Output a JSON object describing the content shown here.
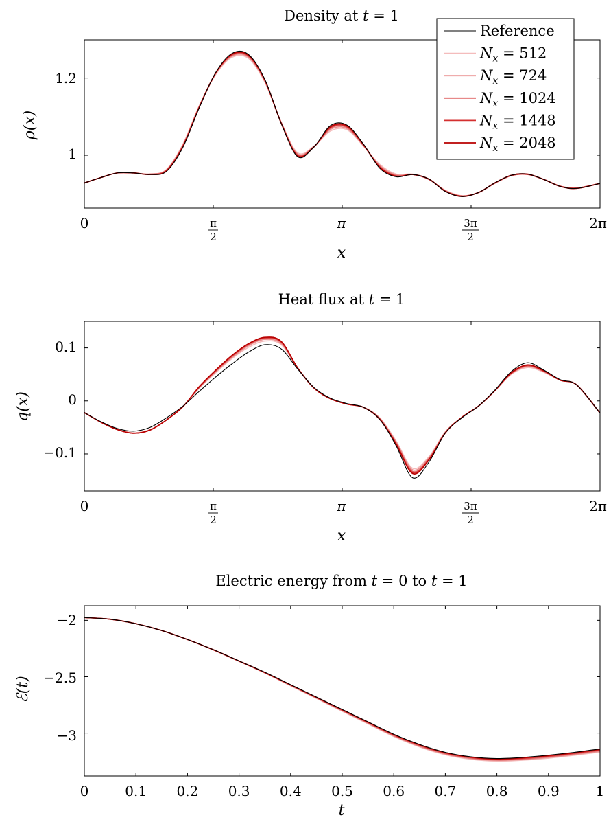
{
  "legend": {
    "placement": "top-right of first plot",
    "entries": [
      {
        "label": "Reference",
        "color": "#000000"
      },
      {
        "label": "N_x = 512",
        "color": "#f4bcbc"
      },
      {
        "label": "N_x = 724",
        "color": "#ea9090"
      },
      {
        "label": "N_x = 1024",
        "color": "#df6262"
      },
      {
        "label": "N_x = 1448",
        "color": "#d43030"
      },
      {
        "label": "N_x = 2048",
        "color": "#b80000"
      }
    ]
  },
  "chart_data": [
    {
      "type": "line",
      "title": "Density at t = 1",
      "xlabel": "x",
      "ylabel": "ρ(x)",
      "xlim": [
        0,
        6.2832
      ],
      "ylim": [
        0.863,
        1.299
      ],
      "xticks": [
        {
          "v": 0,
          "label": "0"
        },
        {
          "v": 1.5708,
          "label": "π/2"
        },
        {
          "v": 3.1416,
          "label": "π"
        },
        {
          "v": 4.7124,
          "label": "3π/2"
        },
        {
          "v": 6.2832,
          "label": "2π"
        }
      ],
      "yticks": [
        {
          "v": 1.0,
          "label": "1"
        },
        {
          "v": 1.2,
          "label": "1.2"
        }
      ],
      "grid": false,
      "x": [
        0,
        0.2,
        0.4,
        0.6,
        0.8,
        1.0,
        1.2,
        1.4,
        1.6,
        1.8,
        2.0,
        2.2,
        2.4,
        2.6,
        2.8,
        3.0,
        3.2,
        3.4,
        3.6,
        3.8,
        4.0,
        4.2,
        4.4,
        4.6,
        4.8,
        5.0,
        5.2,
        5.4,
        5.6,
        5.8,
        6.0,
        6.2832
      ],
      "series": [
        {
          "name": "Reference",
          "values": [
            0.928,
            0.942,
            0.954,
            0.954,
            0.95,
            0.958,
            1.02,
            1.123,
            1.214,
            1.264,
            1.261,
            1.196,
            1.082,
            0.996,
            1.022,
            1.077,
            1.078,
            1.029,
            0.966,
            0.944,
            0.95,
            0.938,
            0.906,
            0.893,
            0.903,
            0.928,
            0.948,
            0.951,
            0.937,
            0.919,
            0.914,
            0.927
          ]
        },
        {
          "name": "N_x = 512",
          "values": [
            0.928,
            0.942,
            0.954,
            0.954,
            0.951,
            0.963,
            1.028,
            1.128,
            1.209,
            1.254,
            1.251,
            1.189,
            1.085,
            1.006,
            1.024,
            1.063,
            1.066,
            1.024,
            0.976,
            0.951,
            0.951,
            0.937,
            0.909,
            0.895,
            0.903,
            0.927,
            0.947,
            0.95,
            0.937,
            0.92,
            0.915,
            0.927
          ]
        },
        {
          "name": "N_x = 724",
          "values": [
            0.928,
            0.942,
            0.954,
            0.954,
            0.951,
            0.962,
            1.026,
            1.127,
            1.211,
            1.257,
            1.254,
            1.191,
            1.084,
            1.003,
            1.023,
            1.067,
            1.069,
            1.025,
            0.973,
            0.949,
            0.95,
            0.937,
            0.908,
            0.894,
            0.903,
            0.927,
            0.947,
            0.95,
            0.937,
            0.92,
            0.915,
            0.927
          ]
        },
        {
          "name": "N_x = 1024",
          "values": [
            0.928,
            0.942,
            0.954,
            0.954,
            0.951,
            0.961,
            1.024,
            1.126,
            1.212,
            1.259,
            1.256,
            1.193,
            1.083,
            1.001,
            1.023,
            1.07,
            1.072,
            1.026,
            0.971,
            0.947,
            0.95,
            0.937,
            0.907,
            0.894,
            0.903,
            0.927,
            0.947,
            0.95,
            0.937,
            0.92,
            0.915,
            0.927
          ]
        },
        {
          "name": "N_x = 1448",
          "values": [
            0.928,
            0.942,
            0.954,
            0.954,
            0.95,
            0.96,
            1.023,
            1.125,
            1.213,
            1.261,
            1.258,
            1.194,
            1.083,
            0.999,
            1.022,
            1.072,
            1.074,
            1.027,
            0.969,
            0.946,
            0.95,
            0.938,
            0.907,
            0.894,
            0.903,
            0.928,
            0.948,
            0.951,
            0.937,
            0.919,
            0.914,
            0.927
          ]
        },
        {
          "name": "N_x = 2048",
          "values": [
            0.928,
            0.942,
            0.954,
            0.954,
            0.95,
            0.959,
            1.022,
            1.124,
            1.213,
            1.262,
            1.259,
            1.195,
            1.082,
            0.998,
            1.022,
            1.074,
            1.076,
            1.028,
            0.968,
            0.945,
            0.95,
            0.938,
            0.906,
            0.893,
            0.903,
            0.928,
            0.948,
            0.951,
            0.937,
            0.919,
            0.914,
            0.927
          ]
        }
      ]
    },
    {
      "type": "line",
      "title": "Heat flux at t = 1",
      "xlabel": "x",
      "ylabel": "q(x)",
      "xlim": [
        0,
        6.2832
      ],
      "ylim": [
        -0.17,
        0.15
      ],
      "xticks": [
        {
          "v": 0,
          "label": "0"
        },
        {
          "v": 1.5708,
          "label": "π/2"
        },
        {
          "v": 3.1416,
          "label": "π"
        },
        {
          "v": 4.7124,
          "label": "3π/2"
        },
        {
          "v": 6.2832,
          "label": "2π"
        }
      ],
      "yticks": [
        {
          "v": -0.1,
          "label": "−0.1"
        },
        {
          "v": 0,
          "label": "0"
        },
        {
          "v": 0.1,
          "label": "0.1"
        }
      ],
      "grid": false,
      "x": [
        0,
        0.2,
        0.4,
        0.6,
        0.8,
        1.0,
        1.2,
        1.4,
        1.6,
        1.8,
        2.0,
        2.2,
        2.4,
        2.6,
        2.8,
        3.0,
        3.2,
        3.4,
        3.6,
        3.8,
        4.0,
        4.2,
        4.4,
        4.6,
        4.8,
        5.0,
        5.2,
        5.4,
        5.6,
        5.8,
        6.0,
        6.2832
      ],
      "series": [
        {
          "name": "Reference",
          "values": [
            -0.022,
            -0.039,
            -0.052,
            -0.057,
            -0.05,
            -0.032,
            -0.01,
            0.018,
            0.045,
            0.07,
            0.092,
            0.106,
            0.098,
            0.06,
            0.025,
            0.005,
            -0.005,
            -0.012,
            -0.035,
            -0.085,
            -0.145,
            -0.115,
            -0.06,
            -0.032,
            -0.01,
            0.02,
            0.055,
            0.072,
            0.058,
            0.04,
            0.03,
            -0.023
          ]
        },
        {
          "name": "N_x = 512",
          "values": [
            -0.022,
            -0.04,
            -0.053,
            -0.06,
            -0.054,
            -0.036,
            -0.011,
            0.024,
            0.053,
            0.08,
            0.101,
            0.113,
            0.106,
            0.061,
            0.024,
            0.004,
            -0.006,
            -0.012,
            -0.032,
            -0.076,
            -0.127,
            -0.105,
            -0.058,
            -0.031,
            -0.01,
            0.019,
            0.05,
            0.063,
            0.054,
            0.039,
            0.03,
            -0.023
          ]
        },
        {
          "name": "N_x = 724",
          "values": [
            -0.022,
            -0.04,
            -0.054,
            -0.061,
            -0.055,
            -0.036,
            -0.011,
            0.025,
            0.055,
            0.082,
            0.104,
            0.116,
            0.108,
            0.062,
            0.024,
            0.004,
            -0.006,
            -0.012,
            -0.033,
            -0.078,
            -0.13,
            -0.107,
            -0.059,
            -0.031,
            -0.01,
            0.019,
            0.051,
            0.065,
            0.055,
            0.039,
            0.03,
            -0.023
          ]
        },
        {
          "name": "N_x = 1024",
          "values": [
            -0.022,
            -0.04,
            -0.054,
            -0.061,
            -0.055,
            -0.036,
            -0.011,
            0.026,
            0.056,
            0.084,
            0.106,
            0.118,
            0.11,
            0.062,
            0.024,
            0.004,
            -0.006,
            -0.012,
            -0.034,
            -0.08,
            -0.133,
            -0.109,
            -0.059,
            -0.031,
            -0.01,
            0.019,
            0.052,
            0.066,
            0.056,
            0.039,
            0.03,
            -0.023
          ]
        },
        {
          "name": "N_x = 1448",
          "values": [
            -0.022,
            -0.04,
            -0.054,
            -0.061,
            -0.055,
            -0.036,
            -0.011,
            0.026,
            0.057,
            0.085,
            0.107,
            0.119,
            0.111,
            0.062,
            0.024,
            0.004,
            -0.006,
            -0.012,
            -0.034,
            -0.081,
            -0.135,
            -0.11,
            -0.06,
            -0.031,
            -0.01,
            0.019,
            0.052,
            0.067,
            0.056,
            0.039,
            0.03,
            -0.023
          ]
        },
        {
          "name": "N_x = 2048",
          "values": [
            -0.022,
            -0.04,
            -0.054,
            -0.061,
            -0.055,
            -0.036,
            -0.011,
            0.027,
            0.058,
            0.086,
            0.108,
            0.12,
            0.112,
            0.062,
            0.024,
            0.004,
            -0.006,
            -0.012,
            -0.035,
            -0.082,
            -0.137,
            -0.111,
            -0.06,
            -0.031,
            -0.01,
            0.019,
            0.053,
            0.068,
            0.057,
            0.039,
            0.03,
            -0.023
          ]
        }
      ]
    },
    {
      "type": "line",
      "title": "Electric energy from t = 0 to t = 1",
      "xlabel": "t",
      "ylabel": "ℰ(t)",
      "xlim": [
        0,
        1
      ],
      "ylim": [
        -3.38,
        -1.87
      ],
      "xticks": [
        {
          "v": 0,
          "label": "0"
        },
        {
          "v": 0.1,
          "label": "0.1"
        },
        {
          "v": 0.2,
          "label": "0.2"
        },
        {
          "v": 0.3,
          "label": "0.3"
        },
        {
          "v": 0.4,
          "label": "0.4"
        },
        {
          "v": 0.5,
          "label": "0.5"
        },
        {
          "v": 0.6,
          "label": "0.6"
        },
        {
          "v": 0.7,
          "label": "0.7"
        },
        {
          "v": 0.8,
          "label": "0.8"
        },
        {
          "v": 0.9,
          "label": "0.9"
        },
        {
          "v": 1,
          "label": "1"
        }
      ],
      "yticks": [
        {
          "v": -3,
          "label": "−3"
        },
        {
          "v": -2.5,
          "label": "−2.5"
        },
        {
          "v": -2,
          "label": "−2"
        }
      ],
      "grid": false,
      "x": [
        0,
        0.05,
        0.1,
        0.15,
        0.2,
        0.25,
        0.3,
        0.35,
        0.4,
        0.45,
        0.5,
        0.55,
        0.6,
        0.65,
        0.7,
        0.75,
        0.8,
        0.85,
        0.9,
        0.95,
        1.0
      ],
      "series": [
        {
          "name": "Reference",
          "values": [
            -1.975,
            -1.99,
            -2.03,
            -2.09,
            -2.17,
            -2.26,
            -2.36,
            -2.46,
            -2.57,
            -2.68,
            -2.79,
            -2.9,
            -3.01,
            -3.1,
            -3.17,
            -3.21,
            -3.225,
            -3.215,
            -3.195,
            -3.17,
            -3.14
          ]
        },
        {
          "name": "N_x = 512",
          "values": [
            -1.975,
            -1.99,
            -2.03,
            -2.09,
            -2.17,
            -2.262,
            -2.364,
            -2.467,
            -2.58,
            -2.692,
            -2.806,
            -2.918,
            -3.03,
            -3.122,
            -3.192,
            -3.232,
            -3.248,
            -3.24,
            -3.222,
            -3.196,
            -3.168
          ]
        },
        {
          "name": "N_x = 724",
          "values": [
            -1.975,
            -1.99,
            -2.03,
            -2.09,
            -2.17,
            -2.262,
            -2.363,
            -2.466,
            -2.578,
            -2.689,
            -2.802,
            -2.913,
            -3.025,
            -3.117,
            -3.186,
            -3.226,
            -3.242,
            -3.234,
            -3.215,
            -3.19,
            -3.161
          ]
        },
        {
          "name": "N_x = 1024",
          "values": [
            -1.975,
            -1.99,
            -2.03,
            -2.09,
            -2.17,
            -2.261,
            -2.362,
            -2.464,
            -2.575,
            -2.686,
            -2.798,
            -2.909,
            -3.02,
            -3.111,
            -3.181,
            -3.221,
            -3.237,
            -3.228,
            -3.209,
            -3.183,
            -3.154
          ]
        },
        {
          "name": "N_x = 1448",
          "values": [
            -1.975,
            -1.99,
            -2.03,
            -2.09,
            -2.17,
            -2.261,
            -2.361,
            -2.463,
            -2.573,
            -2.684,
            -2.795,
            -2.905,
            -3.015,
            -3.106,
            -3.176,
            -3.216,
            -3.232,
            -3.223,
            -3.204,
            -3.178,
            -3.148
          ]
        },
        {
          "name": "N_x = 2048",
          "values": [
            -1.975,
            -1.99,
            -2.03,
            -2.09,
            -2.17,
            -2.26,
            -2.36,
            -2.462,
            -2.572,
            -2.682,
            -2.792,
            -2.902,
            -3.012,
            -3.103,
            -3.173,
            -3.213,
            -3.229,
            -3.219,
            -3.199,
            -3.174,
            -3.144
          ]
        }
      ]
    }
  ]
}
